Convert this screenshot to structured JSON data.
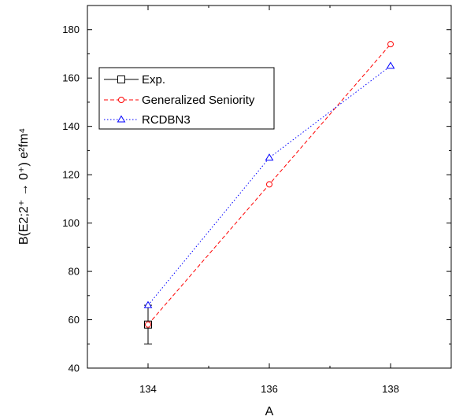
{
  "chart_data": {
    "type": "line",
    "title": "",
    "xlabel": "A",
    "ylabel": "B(E2;2⁺ → 0⁺) e²fm⁴",
    "xlim": [
      133,
      139
    ],
    "ylim": [
      40,
      190
    ],
    "xticks": [
      134,
      136,
      138
    ],
    "yticks": [
      40,
      60,
      80,
      100,
      120,
      140,
      160,
      180
    ],
    "grid": false,
    "legend_position": "top-left",
    "series": [
      {
        "name": "Exp.",
        "color": "#000000",
        "line": "solid",
        "marker": "square",
        "x": [
          134
        ],
        "y": [
          58
        ],
        "yerr": [
          8
        ]
      },
      {
        "name": "Generalized Seniority",
        "color": "#ff0000",
        "line": "dashed",
        "marker": "circle",
        "x": [
          134,
          136,
          138
        ],
        "y": [
          58,
          116,
          174
        ]
      },
      {
        "name": "RCDBN3",
        "color": "#0000ff",
        "line": "dotted",
        "marker": "triangle",
        "x": [
          134,
          136,
          138
        ],
        "y": [
          66,
          127,
          165
        ]
      }
    ]
  }
}
